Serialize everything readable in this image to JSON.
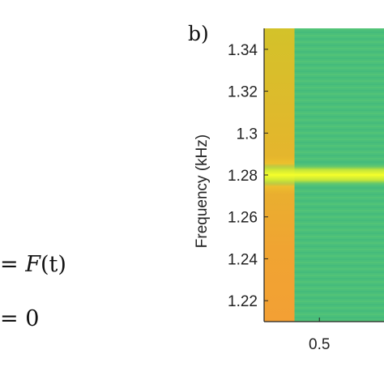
{
  "equations": {
    "line1_prefix": "= ",
    "line1_func": "F",
    "line1_arg": "(t)",
    "line2": "= 0"
  },
  "panel_label": "b)",
  "chart_data": {
    "type": "heatmap",
    "title": "",
    "xlabel": "",
    "ylabel": "Frequency (kHz)",
    "yticks": [
      1.34,
      1.32,
      1.3,
      1.28,
      1.26,
      1.24,
      1.22
    ],
    "ytick_labels": [
      "1.34",
      "1.32",
      "1.3",
      "1.28",
      "1.26",
      "1.24",
      "1.22"
    ],
    "ylim": [
      1.21,
      1.35
    ],
    "xticks": [
      0.5
    ],
    "xtick_labels": [
      "0.5"
    ],
    "xlim": [
      0.3,
      2.0
    ],
    "band_center_khz": 1.28,
    "early_segment_end": 0.41,
    "colors": {
      "background_green": "#4bbf7a",
      "early_segment": "#c9c72a",
      "band_peak": "#f6ff2a",
      "band_edge": "#c8e636",
      "low_orange": "#f1a233"
    }
  }
}
